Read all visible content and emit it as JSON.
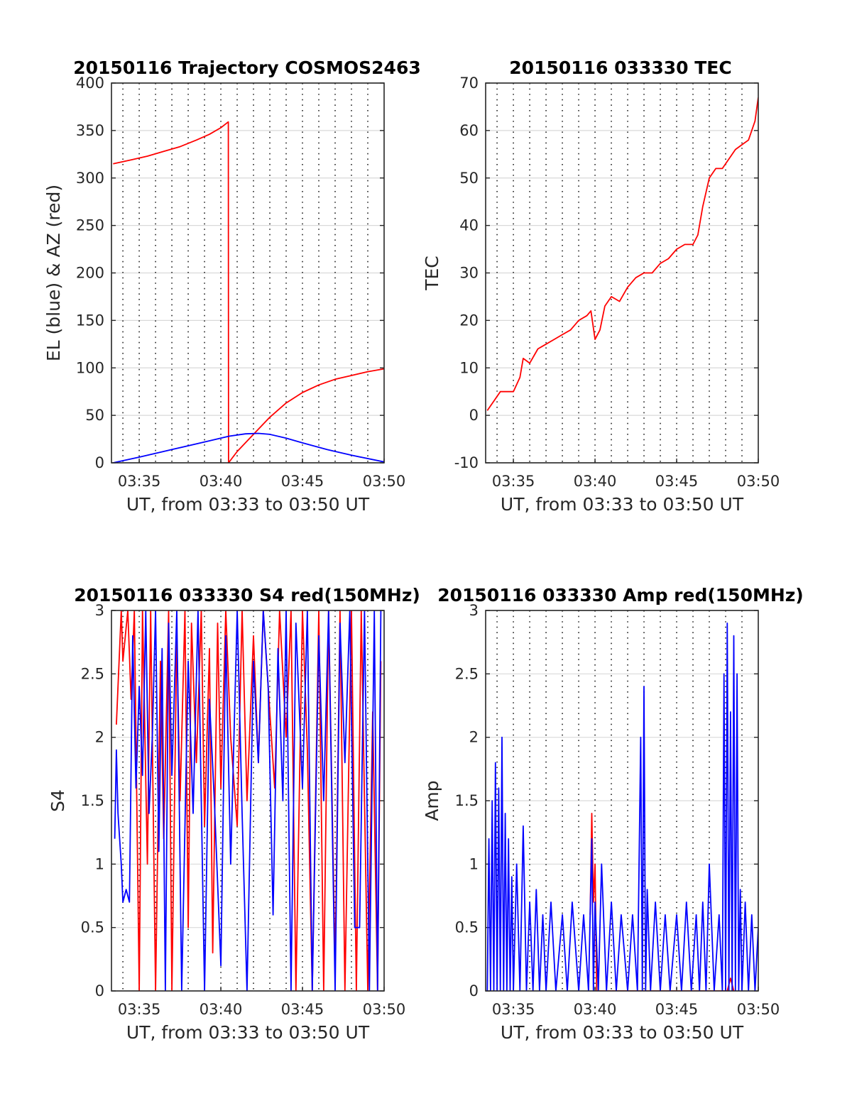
{
  "figure_date": "20150116",
  "chart_data": [
    {
      "id": "trajectory",
      "type": "line",
      "title": "20150116 Trajectory COSMOS2463",
      "xlabel": "UT, from 03:33 to 03:50 UT",
      "ylabel": "EL (blue) & AZ (red)",
      "xlim_minutes": [
        33.3,
        50.0
      ],
      "x_ticks": [
        "03:35",
        "03:40",
        "03:45",
        "03:50"
      ],
      "ylim": [
        0,
        400
      ],
      "y_ticks": [
        "0",
        "50",
        "100",
        "150",
        "200",
        "250",
        "300",
        "350",
        "400"
      ],
      "x_unit": "minutes after 03:00 UT",
      "series": [
        {
          "color": "#ff0000",
          "style": "line",
          "x": [
            33.4,
            34.5,
            35.5,
            36.5,
            37.5,
            38.5,
            39.3,
            40.0,
            40.45,
            40.46,
            40.47,
            41.0,
            42.0,
            43.0,
            44.0,
            45.0,
            46.0,
            47.0,
            48.0,
            49.0,
            50.0
          ],
          "y": [
            315,
            319,
            323,
            328,
            333,
            340,
            346,
            353,
            359,
            359,
            0,
            12,
            30,
            48,
            63,
            74,
            82,
            88,
            92,
            96,
            99
          ]
        },
        {
          "color": "#0000ff",
          "style": "line",
          "x": [
            33.4,
            35.0,
            37.0,
            39.0,
            40.5,
            41.5,
            42.3,
            43.0,
            44.0,
            45.0,
            46.5,
            48.0,
            50.0
          ],
          "y": [
            0,
            6,
            14,
            22,
            28,
            30.5,
            31,
            30,
            26,
            21,
            14,
            8,
            1
          ]
        }
      ]
    },
    {
      "id": "tec",
      "type": "line",
      "title": "20150116 033330 TEC",
      "xlabel": "UT, from 03:33 to 03:50 UT",
      "ylabel": "TEC",
      "xlim_minutes": [
        33.3,
        50.0
      ],
      "x_ticks": [
        "03:35",
        "03:40",
        "03:45",
        "03:50"
      ],
      "ylim": [
        -10,
        70
      ],
      "y_ticks": [
        "-10",
        "0",
        "10",
        "20",
        "30",
        "40",
        "50",
        "60",
        "70"
      ],
      "x_unit": "minutes after 03:00 UT",
      "series": [
        {
          "color": "#ff0000",
          "style": "line",
          "x": [
            33.4,
            33.8,
            34.2,
            34.6,
            35.0,
            35.4,
            35.6,
            36.0,
            36.5,
            37.0,
            37.5,
            38.0,
            38.5,
            39.0,
            39.5,
            39.75,
            40.0,
            40.3,
            40.6,
            41.0,
            41.5,
            42.0,
            42.5,
            43.0,
            43.5,
            44.0,
            44.5,
            45.0,
            45.5,
            46.0,
            46.3,
            46.6,
            47.0,
            47.4,
            47.8,
            48.2,
            48.6,
            49.0,
            49.4,
            49.8,
            50.0
          ],
          "y": [
            1,
            3,
            5,
            5,
            5,
            8,
            12,
            11,
            14,
            15,
            16,
            17,
            18,
            20,
            21,
            22,
            16,
            18,
            23,
            25,
            24,
            27,
            29,
            30,
            30,
            32,
            33,
            35,
            36,
            36,
            38,
            44,
            50,
            52,
            52,
            54,
            56,
            57,
            58,
            62,
            67
          ]
        }
      ]
    },
    {
      "id": "s4",
      "type": "line",
      "title": "20150116 033330 S4 red(150MHz)",
      "xlabel": "UT, from 03:33 to 03:50 UT",
      "ylabel": "S4",
      "xlim_minutes": [
        33.3,
        50.0
      ],
      "x_ticks": [
        "03:35",
        "03:40",
        "03:45",
        "03:50"
      ],
      "ylim": [
        0,
        3
      ],
      "y_ticks": [
        "0",
        "0.5",
        "1",
        "1.5",
        "2",
        "2.5",
        "3"
      ],
      "x_unit": "minutes after 03:00 UT",
      "series": [
        {
          "color": "#ff0000",
          "style": "line",
          "x": [
            33.6,
            33.9,
            34.0,
            34.3,
            34.5,
            34.7,
            35.0,
            35.2,
            35.5,
            35.7,
            36.0,
            36.3,
            36.5,
            36.8,
            37.0,
            37.3,
            37.5,
            37.8,
            38.0,
            38.2,
            38.5,
            38.8,
            39.0,
            39.3,
            39.5,
            39.8,
            40.0,
            40.3,
            40.6,
            41.0,
            41.3,
            41.6,
            42.0,
            42.3,
            42.6,
            43.0,
            43.3,
            43.6,
            44.0,
            44.3,
            44.6,
            45.0,
            45.3,
            45.6,
            46.0,
            46.3,
            46.6,
            47.0,
            47.3,
            47.6,
            48.0,
            48.3,
            48.6,
            49.0,
            49.3,
            49.6,
            49.8
          ],
          "y": [
            2.1,
            3.0,
            2.6,
            3.0,
            2.3,
            3.0,
            0.0,
            3.0,
            1.0,
            3.0,
            0.0,
            2.6,
            1.2,
            3.0,
            0.0,
            2.8,
            1.5,
            3.0,
            0.5,
            2.9,
            1.8,
            3.0,
            1.3,
            2.7,
            0.3,
            2.9,
            1.6,
            3.0,
            2.0,
            1.3,
            3.0,
            1.5,
            2.8,
            1.8,
            3.0,
            2.2,
            1.6,
            3.0,
            2.0,
            3.0,
            0.0,
            3.0,
            1.9,
            0.0,
            3.0,
            0.0,
            3.0,
            0.2,
            3.0,
            0.0,
            3.0,
            0.0,
            3.0,
            0.0,
            2.2,
            0.0,
            2.6
          ]
        },
        {
          "color": "#0000ff",
          "style": "line",
          "x": [
            33.5,
            33.6,
            33.7,
            33.9,
            34.0,
            34.2,
            34.4,
            34.6,
            34.8,
            35.0,
            35.2,
            35.4,
            35.6,
            35.8,
            36.0,
            36.2,
            36.4,
            36.6,
            36.8,
            37.0,
            37.3,
            37.6,
            38.0,
            38.3,
            38.6,
            39.0,
            39.3,
            39.6,
            40.0,
            40.3,
            40.6,
            41.0,
            41.3,
            41.6,
            42.0,
            42.3,
            42.6,
            42.9,
            43.2,
            43.5,
            43.8,
            44.0,
            44.3,
            44.6,
            45.0,
            45.3,
            45.6,
            46.0,
            46.3,
            46.6,
            47.0,
            47.3,
            47.6,
            47.9,
            48.2,
            48.5,
            48.8,
            49.1,
            49.4,
            49.6,
            49.8
          ],
          "y": [
            1.2,
            1.9,
            1.4,
            1.0,
            0.7,
            0.8,
            0.7,
            2.8,
            1.6,
            2.4,
            1.7,
            3.0,
            1.4,
            2.0,
            3.0,
            1.1,
            2.7,
            0.0,
            2.9,
            1.7,
            3.0,
            0.0,
            2.6,
            1.4,
            3.0,
            0.0,
            2.3,
            1.5,
            0.2,
            2.8,
            1.0,
            3.0,
            1.4,
            0.0,
            2.6,
            1.8,
            3.0,
            2.4,
            0.6,
            2.7,
            1.5,
            3.0,
            0.0,
            2.9,
            1.6,
            3.0,
            0.0,
            2.8,
            1.5,
            3.0,
            0.0,
            2.9,
            1.8,
            3.0,
            0.5,
            0.5,
            3.0,
            0.0,
            3.0,
            0.0,
            3.0
          ]
        }
      ]
    },
    {
      "id": "amp",
      "type": "line",
      "title": "20150116 033330 Amp red(150MHz)",
      "xlabel": "UT, from 03:33 to 03:50 UT",
      "ylabel": "Amp",
      "xlim_minutes": [
        33.3,
        50.0
      ],
      "x_ticks": [
        "03:35",
        "03:40",
        "03:45",
        "03:50"
      ],
      "ylim": [
        0,
        3
      ],
      "y_ticks": [
        "0",
        "0.5",
        "1",
        "1.5",
        "2",
        "2.5",
        "3"
      ],
      "x_unit": "minutes after 03:00 UT",
      "series": [
        {
          "color": "#ff0000",
          "style": "line",
          "x": [
            39.7,
            39.8,
            39.9,
            40.0,
            40.1,
            48.1,
            48.3,
            48.5
          ],
          "y": [
            0.6,
            1.4,
            0.7,
            1.0,
            0.0,
            0.0,
            0.1,
            0.0
          ]
        },
        {
          "color": "#0000ff",
          "style": "line",
          "x": [
            33.4,
            33.5,
            33.6,
            33.7,
            33.8,
            33.9,
            34.0,
            34.1,
            34.2,
            34.3,
            34.4,
            34.5,
            34.6,
            34.7,
            34.8,
            34.9,
            35.0,
            35.2,
            35.4,
            35.6,
            35.8,
            36.0,
            36.2,
            36.4,
            36.6,
            36.8,
            37.0,
            37.3,
            37.6,
            38.0,
            38.3,
            38.6,
            39.0,
            39.3,
            39.6,
            39.8,
            39.9,
            40.0,
            40.2,
            40.4,
            40.7,
            41.0,
            41.3,
            41.6,
            42.0,
            42.3,
            42.6,
            42.8,
            42.9,
            43.0,
            43.1,
            43.2,
            43.4,
            43.7,
            44.0,
            44.3,
            44.6,
            45.0,
            45.3,
            45.6,
            45.9,
            46.2,
            46.4,
            46.6,
            46.8,
            47.0,
            47.3,
            47.6,
            47.8,
            47.9,
            48.0,
            48.1,
            48.2,
            48.3,
            48.4,
            48.5,
            48.6,
            48.7,
            48.8,
            48.9,
            49.0,
            49.2,
            49.4,
            49.6,
            49.8,
            50.0
          ],
          "y": [
            0.0,
            1.2,
            0.0,
            1.5,
            0.0,
            1.8,
            0.0,
            1.6,
            0.0,
            2.0,
            0.0,
            1.4,
            0.0,
            1.2,
            0.0,
            0.9,
            0.0,
            1.0,
            0.0,
            1.3,
            0.0,
            0.7,
            0.0,
            0.8,
            0.0,
            0.6,
            0.0,
            0.7,
            0.0,
            0.6,
            0.0,
            0.7,
            0.0,
            0.6,
            0.0,
            1.2,
            0.0,
            0.7,
            0.0,
            1.0,
            0.0,
            0.7,
            0.0,
            0.6,
            0.0,
            0.6,
            0.0,
            2.0,
            0.0,
            2.4,
            0.0,
            0.8,
            0.0,
            0.7,
            0.0,
            0.6,
            0.0,
            0.6,
            0.0,
            0.7,
            0.0,
            0.6,
            0.0,
            0.7,
            0.0,
            1.0,
            0.0,
            0.6,
            0.0,
            2.5,
            0.0,
            2.9,
            0.0,
            2.2,
            0.0,
            2.8,
            0.0,
            2.5,
            0.0,
            0.8,
            0.0,
            0.7,
            0.0,
            0.6,
            0.0,
            0.5
          ]
        }
      ]
    }
  ]
}
